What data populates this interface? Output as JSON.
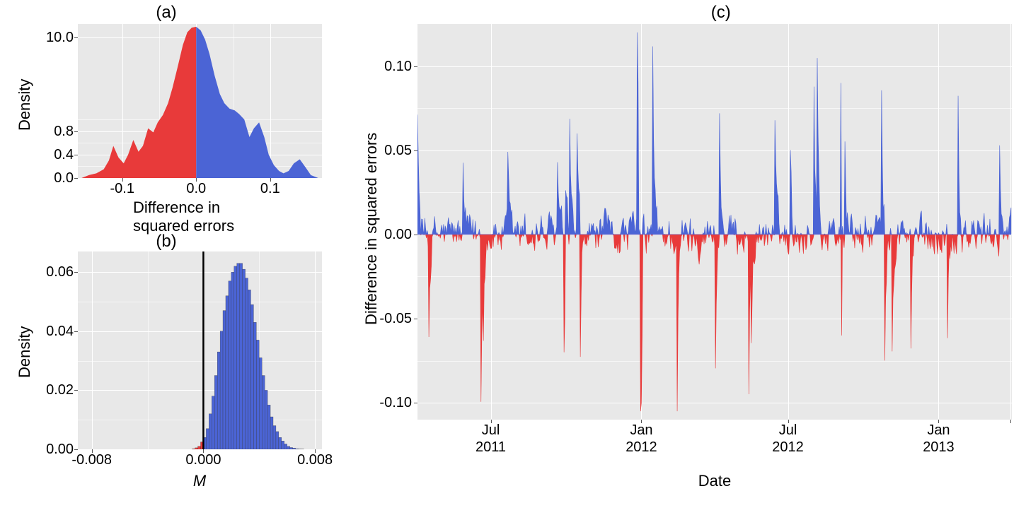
{
  "colors": {
    "red": "#e83a3a",
    "blue": "#4b64d5",
    "panel_bg": "#e8e8e8",
    "grid": "#ffffff",
    "text": "#000000",
    "vline": "#000000"
  },
  "panelA": {
    "title": "(a)",
    "xlabel": "Difference in squared errors",
    "ylabel": "Density",
    "xlim": [
      -0.16,
      0.17
    ],
    "ylim": [
      0,
      11.5
    ],
    "xticks": [
      -0.1,
      0.0,
      0.1
    ],
    "yticks": [
      0.0,
      0.4,
      0.8,
      10.0
    ],
    "density_points": [
      [
        -0.155,
        0.0
      ],
      [
        -0.145,
        0.05
      ],
      [
        -0.135,
        0.08
      ],
      [
        -0.125,
        0.15
      ],
      [
        -0.118,
        0.3
      ],
      [
        -0.112,
        0.55
      ],
      [
        -0.105,
        0.35
      ],
      [
        -0.098,
        0.25
      ],
      [
        -0.092,
        0.4
      ],
      [
        -0.085,
        0.65
      ],
      [
        -0.078,
        0.45
      ],
      [
        -0.072,
        0.55
      ],
      [
        -0.065,
        0.85
      ],
      [
        -0.058,
        0.78
      ],
      [
        -0.052,
        0.95
      ],
      [
        -0.045,
        1.5
      ],
      [
        -0.038,
        2.8
      ],
      [
        -0.032,
        4.5
      ],
      [
        -0.025,
        6.8
      ],
      [
        -0.018,
        9.2
      ],
      [
        -0.012,
        10.6
      ],
      [
        -0.006,
        11.1
      ],
      [
        0.0,
        11.2
      ],
      [
        0.006,
        10.8
      ],
      [
        0.012,
        9.8
      ],
      [
        0.018,
        8.2
      ],
      [
        0.025,
        5.8
      ],
      [
        0.032,
        3.8
      ],
      [
        0.038,
        2.8
      ],
      [
        0.045,
        2.2
      ],
      [
        0.052,
        2.0
      ],
      [
        0.058,
        1.6
      ],
      [
        0.065,
        1.0
      ],
      [
        0.072,
        0.7
      ],
      [
        0.078,
        0.85
      ],
      [
        0.085,
        0.95
      ],
      [
        0.092,
        0.7
      ],
      [
        0.098,
        0.4
      ],
      [
        0.105,
        0.22
      ],
      [
        0.112,
        0.12
      ],
      [
        0.118,
        0.08
      ],
      [
        0.125,
        0.12
      ],
      [
        0.132,
        0.25
      ],
      [
        0.14,
        0.32
      ],
      [
        0.148,
        0.18
      ],
      [
        0.155,
        0.05
      ],
      [
        0.165,
        0.0
      ]
    ]
  },
  "panelB": {
    "title": "(b)",
    "xlabel": "M",
    "ylabel": "Density",
    "xlim": [
      -0.009,
      0.0085
    ],
    "ylim": [
      0,
      0.067
    ],
    "xticks": [
      -0.008,
      0.0,
      0.008
    ],
    "yticks": [
      0.0,
      0.02,
      0.04,
      0.06
    ],
    "vline": 0.0,
    "hist_bins": [
      [
        -0.0008,
        0.0002
      ],
      [
        -0.0006,
        0.0005
      ],
      [
        -0.0004,
        0.001
      ],
      [
        -0.0002,
        0.0025
      ],
      [
        0.0,
        0.004
      ],
      [
        0.0002,
        0.007
      ],
      [
        0.0004,
        0.012
      ],
      [
        0.0006,
        0.018
      ],
      [
        0.0008,
        0.025
      ],
      [
        0.001,
        0.033
      ],
      [
        0.0012,
        0.04
      ],
      [
        0.0014,
        0.047
      ],
      [
        0.0016,
        0.052
      ],
      [
        0.0018,
        0.057
      ],
      [
        0.002,
        0.06
      ],
      [
        0.0022,
        0.062
      ],
      [
        0.0024,
        0.063
      ],
      [
        0.0026,
        0.063
      ],
      [
        0.0028,
        0.061
      ],
      [
        0.003,
        0.058
      ],
      [
        0.0032,
        0.054
      ],
      [
        0.0034,
        0.049
      ],
      [
        0.0036,
        0.043
      ],
      [
        0.0038,
        0.037
      ],
      [
        0.004,
        0.031
      ],
      [
        0.0042,
        0.025
      ],
      [
        0.0044,
        0.02
      ],
      [
        0.0046,
        0.015
      ],
      [
        0.0048,
        0.011
      ],
      [
        0.005,
        0.008
      ],
      [
        0.0052,
        0.006
      ],
      [
        0.0054,
        0.004
      ],
      [
        0.0056,
        0.0028
      ],
      [
        0.0058,
        0.0018
      ],
      [
        0.006,
        0.001
      ],
      [
        0.0062,
        0.0006
      ],
      [
        0.0064,
        0.0004
      ],
      [
        0.0066,
        0.0002
      ],
      [
        0.0068,
        0.0001
      ],
      [
        0.007,
        5e-05
      ]
    ],
    "bin_width": 0.0002
  },
  "panelC": {
    "title": "(c)",
    "xlabel": "Date",
    "ylabel": "Difference in squared errors",
    "xlim": [
      0,
      730
    ],
    "ylim": [
      -0.11,
      0.125
    ],
    "yticks": [
      -0.1,
      -0.05,
      0.0,
      0.05,
      0.1
    ],
    "xticks_at": [
      90,
      275,
      455,
      640,
      728
    ],
    "xticklabs_top": [
      "Jul",
      "Jan",
      "Jul",
      "Jan"
    ],
    "xticklabs_bot": [
      "2011",
      "2012",
      "2012",
      "2013"
    ],
    "series_seed": 12345
  },
  "layout": {
    "font_family": "Arial",
    "title_fontsize": 24,
    "label_fontsize": 22,
    "tick_fontsize": 20
  }
}
